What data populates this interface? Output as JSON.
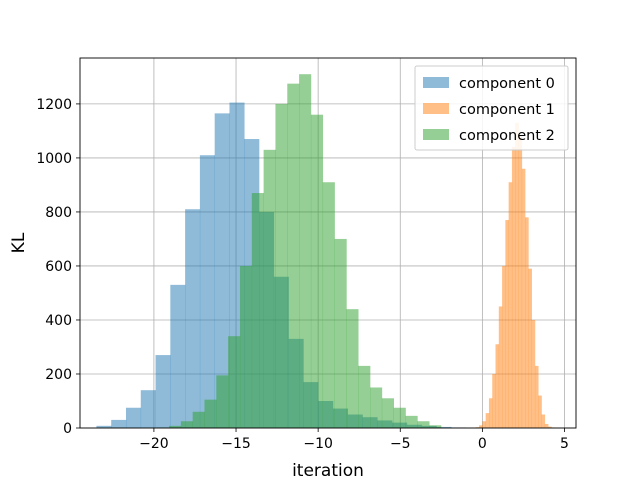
{
  "chart_data": {
    "type": "histogram",
    "title": "",
    "xlabel": "iteration",
    "ylabel": "KL",
    "xlim": [
      -24.5,
      5.7
    ],
    "ylim": [
      0,
      1370
    ],
    "xticks": [
      -20,
      -15,
      -10,
      -5,
      0,
      5
    ],
    "xtick_labels": [
      "−20",
      "−15",
      "−10",
      "−5",
      "0",
      "5"
    ],
    "yticks": [
      0,
      200,
      400,
      600,
      800,
      1000,
      1200
    ],
    "ytick_labels": [
      "0",
      "200",
      "400",
      "600",
      "800",
      "1000",
      "1200"
    ],
    "grid": true,
    "legend_position": "top-right",
    "series": [
      {
        "name": "component 0",
        "color": "#1f77b4",
        "alpha": 0.5,
        "bin_start": -23.5,
        "bin_width": 0.9,
        "counts": [
          8,
          30,
          75,
          140,
          270,
          530,
          810,
          1010,
          1165,
          1205,
          1070,
          800,
          560,
          330,
          170,
          100,
          72,
          50,
          40,
          28,
          20,
          12,
          8,
          4,
          2
        ]
      },
      {
        "name": "component 1",
        "color": "#ff7f0e",
        "alpha": 0.5,
        "bin_start": -0.4,
        "bin_width": 0.2,
        "counts": [
          3,
          10,
          25,
          55,
          110,
          200,
          310,
          450,
          600,
          770,
          910,
          1040,
          1130,
          1080,
          960,
          780,
          590,
          400,
          230,
          120,
          50,
          15,
          5,
          2
        ]
      },
      {
        "name": "component 2",
        "color": "#2ca02c",
        "alpha": 0.5,
        "bin_start": -19.8,
        "bin_width": 0.72,
        "counts": [
          2,
          8,
          25,
          60,
          105,
          195,
          340,
          600,
          870,
          1030,
          1200,
          1275,
          1310,
          1160,
          910,
          700,
          440,
          230,
          150,
          110,
          75,
          45,
          25,
          10
        ]
      }
    ]
  }
}
